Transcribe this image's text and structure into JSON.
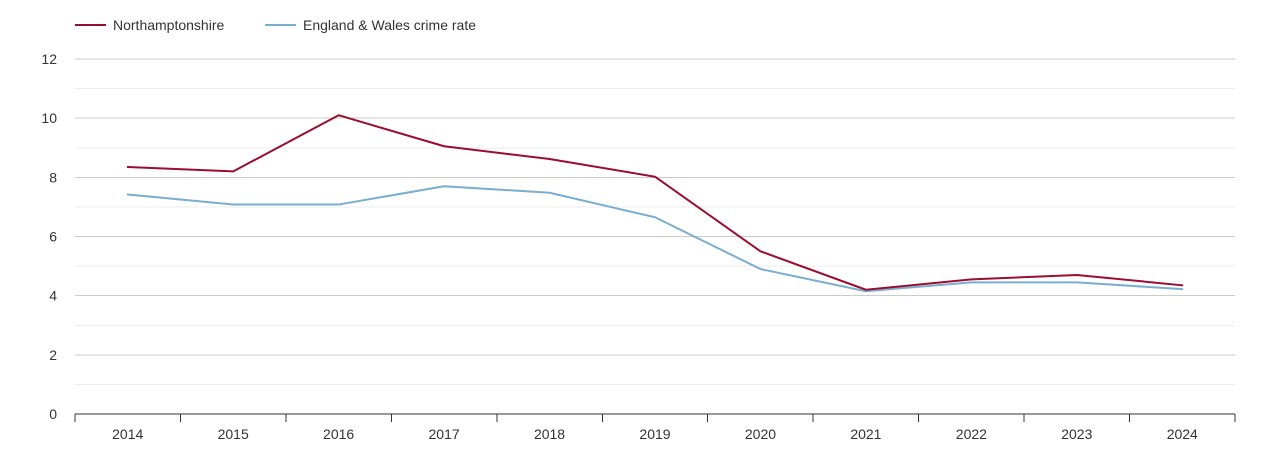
{
  "chart_data": {
    "type": "line",
    "title": "",
    "xlabel": "",
    "ylabel": "",
    "categories": [
      "2014",
      "2015",
      "2016",
      "2017",
      "2018",
      "2019",
      "2020",
      "2021",
      "2022",
      "2023",
      "2024"
    ],
    "ylim": [
      0,
      12
    ],
    "yticks": [
      0,
      2,
      4,
      6,
      8,
      10,
      12
    ],
    "grid": true,
    "legend_position": "top-left",
    "series": [
      {
        "name": "Northamptonshire",
        "color": "#9b0d2f",
        "values": [
          8.35,
          8.2,
          10.1,
          9.05,
          8.62,
          8.02,
          5.5,
          4.2,
          4.55,
          4.7,
          4.35
        ]
      },
      {
        "name": "England & Wales crime rate",
        "color": "#7aaed0",
        "values": [
          7.42,
          7.08,
          7.08,
          7.7,
          7.48,
          6.65,
          4.9,
          4.15,
          4.45,
          4.45,
          4.22
        ]
      }
    ]
  }
}
